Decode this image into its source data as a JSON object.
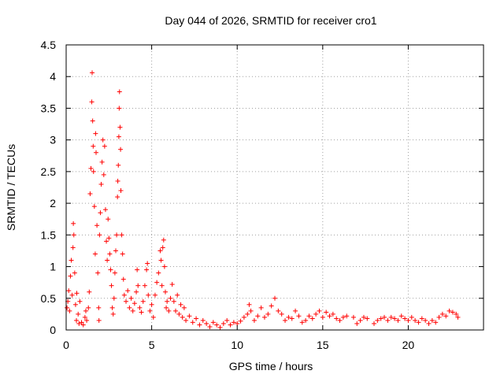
{
  "chart_data": {
    "type": "scatter",
    "title": "Day 044 of 2026, SRMTID for receiver cro1",
    "xlabel": "GPS time / hours",
    "ylabel": "SRMTID / TECUs",
    "xlim": [
      0,
      24.4
    ],
    "ylim": [
      0,
      4.5
    ],
    "x_ticks": [
      0,
      5,
      10,
      15,
      20
    ],
    "y_ticks": [
      0,
      0.5,
      1,
      1.5,
      2,
      2.5,
      3,
      3.5,
      4,
      4.5
    ],
    "x_tick_labels": [
      "0",
      "5",
      "10",
      "15",
      "20"
    ],
    "y_tick_labels": [
      "0",
      "0.5",
      "1",
      "1.5",
      "2",
      "2.5",
      "3",
      "3.5",
      "4",
      "4.5"
    ],
    "grid": true,
    "marker": "+",
    "color": "#ff0000",
    "series": [
      {
        "name": "cro1",
        "points": [
          [
            0.05,
            0.35
          ],
          [
            0.1,
            0.45
          ],
          [
            0.15,
            0.62
          ],
          [
            0.2,
            0.3
          ],
          [
            0.25,
            0.85
          ],
          [
            0.3,
            1.1
          ],
          [
            0.35,
            0.55
          ],
          [
            0.4,
            1.3
          ],
          [
            0.42,
            1.68
          ],
          [
            0.45,
            1.5
          ],
          [
            0.5,
            0.9
          ],
          [
            0.55,
            0.4
          ],
          [
            0.6,
            0.15
          ],
          [
            0.62,
            0.58
          ],
          [
            0.7,
            0.25
          ],
          [
            0.75,
            0.1
          ],
          [
            0.8,
            0.45
          ],
          [
            0.9,
            0.12
          ],
          [
            1.0,
            0.08
          ],
          [
            1.1,
            0.2
          ],
          [
            1.15,
            0.3
          ],
          [
            1.2,
            0.15
          ],
          [
            1.3,
            0.35
          ],
          [
            1.35,
            0.6
          ],
          [
            1.4,
            2.15
          ],
          [
            1.45,
            2.55
          ],
          [
            1.5,
            3.6
          ],
          [
            1.52,
            4.06
          ],
          [
            1.55,
            3.3
          ],
          [
            1.58,
            2.9
          ],
          [
            1.6,
            2.5
          ],
          [
            1.65,
            1.95
          ],
          [
            1.7,
            1.2
          ],
          [
            1.72,
            3.1
          ],
          [
            1.75,
            2.8
          ],
          [
            1.8,
            1.65
          ],
          [
            1.85,
            0.9
          ],
          [
            1.9,
            0.35
          ],
          [
            1.92,
            0.15
          ],
          [
            1.95,
            1.5
          ],
          [
            2.0,
            1.85
          ],
          [
            2.05,
            2.3
          ],
          [
            2.1,
            2.65
          ],
          [
            2.15,
            3.0
          ],
          [
            2.2,
            2.45
          ],
          [
            2.25,
            2.9
          ],
          [
            2.3,
            1.9
          ],
          [
            2.35,
            1.4
          ],
          [
            2.4,
            1.1
          ],
          [
            2.45,
            1.75
          ],
          [
            2.5,
            1.45
          ],
          [
            2.55,
            1.2
          ],
          [
            2.6,
            0.95
          ],
          [
            2.65,
            0.7
          ],
          [
            2.7,
            0.35
          ],
          [
            2.75,
            0.25
          ],
          [
            2.8,
            0.5
          ],
          [
            2.85,
            0.9
          ],
          [
            2.9,
            1.25
          ],
          [
            2.95,
            1.5
          ],
          [
            3.0,
            2.1
          ],
          [
            3.02,
            2.35
          ],
          [
            3.05,
            2.6
          ],
          [
            3.08,
            3.05
          ],
          [
            3.1,
            3.5
          ],
          [
            3.12,
            3.76
          ],
          [
            3.15,
            3.2
          ],
          [
            3.18,
            2.85
          ],
          [
            3.2,
            2.2
          ],
          [
            3.25,
            1.5
          ],
          [
            3.3,
            1.2
          ],
          [
            3.35,
            0.8
          ],
          [
            3.4,
            0.55
          ],
          [
            3.5,
            0.45
          ],
          [
            3.6,
            0.62
          ],
          [
            3.7,
            0.35
          ],
          [
            3.8,
            0.5
          ],
          [
            3.9,
            0.3
          ],
          [
            4.0,
            0.42
          ],
          [
            4.1,
            0.6
          ],
          [
            4.15,
            0.95
          ],
          [
            4.2,
            0.7
          ],
          [
            4.3,
            0.35
          ],
          [
            4.4,
            0.28
          ],
          [
            4.5,
            0.45
          ],
          [
            4.6,
            0.7
          ],
          [
            4.7,
            0.95
          ],
          [
            4.75,
            1.05
          ],
          [
            4.8,
            0.55
          ],
          [
            4.9,
            0.3
          ],
          [
            5.0,
            0.4
          ],
          [
            5.1,
            0.2
          ],
          [
            5.2,
            0.55
          ],
          [
            5.3,
            0.75
          ],
          [
            5.4,
            0.9
          ],
          [
            5.5,
            1.25
          ],
          [
            5.55,
            1.1
          ],
          [
            5.6,
            0.7
          ],
          [
            5.65,
            1.3
          ],
          [
            5.7,
            1.42
          ],
          [
            5.75,
            1.0
          ],
          [
            5.8,
            0.6
          ],
          [
            5.85,
            0.35
          ],
          [
            5.9,
            0.45
          ],
          [
            6.0,
            0.3
          ],
          [
            6.1,
            0.5
          ],
          [
            6.2,
            0.72
          ],
          [
            6.3,
            0.45
          ],
          [
            6.4,
            0.3
          ],
          [
            6.5,
            0.55
          ],
          [
            6.6,
            0.25
          ],
          [
            6.7,
            0.4
          ],
          [
            6.8,
            0.2
          ],
          [
            6.9,
            0.35
          ],
          [
            7.0,
            0.15
          ],
          [
            7.2,
            0.22
          ],
          [
            7.4,
            0.12
          ],
          [
            7.6,
            0.18
          ],
          [
            7.8,
            0.08
          ],
          [
            8.0,
            0.15
          ],
          [
            8.2,
            0.1
          ],
          [
            8.4,
            0.05
          ],
          [
            8.6,
            0.12
          ],
          [
            8.8,
            0.08
          ],
          [
            9.0,
            0.04
          ],
          [
            9.2,
            0.1
          ],
          [
            9.4,
            0.15
          ],
          [
            9.6,
            0.08
          ],
          [
            9.8,
            0.12
          ],
          [
            10.0,
            0.1
          ],
          [
            10.2,
            0.14
          ],
          [
            10.4,
            0.2
          ],
          [
            10.6,
            0.25
          ],
          [
            10.7,
            0.4
          ],
          [
            10.8,
            0.3
          ],
          [
            11.0,
            0.15
          ],
          [
            11.2,
            0.22
          ],
          [
            11.4,
            0.35
          ],
          [
            11.6,
            0.2
          ],
          [
            11.8,
            0.25
          ],
          [
            12.0,
            0.38
          ],
          [
            12.2,
            0.5
          ],
          [
            12.4,
            0.3
          ],
          [
            12.6,
            0.25
          ],
          [
            12.8,
            0.15
          ],
          [
            13.0,
            0.2
          ],
          [
            13.2,
            0.18
          ],
          [
            13.4,
            0.3
          ],
          [
            13.6,
            0.22
          ],
          [
            13.8,
            0.12
          ],
          [
            14.0,
            0.15
          ],
          [
            14.2,
            0.22
          ],
          [
            14.4,
            0.18
          ],
          [
            14.6,
            0.25
          ],
          [
            14.8,
            0.3
          ],
          [
            15.0,
            0.2
          ],
          [
            15.2,
            0.28
          ],
          [
            15.4,
            0.22
          ],
          [
            15.6,
            0.25
          ],
          [
            15.8,
            0.18
          ],
          [
            16.0,
            0.15
          ],
          [
            16.2,
            0.2
          ],
          [
            16.4,
            0.22
          ],
          [
            16.8,
            0.2
          ],
          [
            17.0,
            0.1
          ],
          [
            17.2,
            0.15
          ],
          [
            17.4,
            0.2
          ],
          [
            17.6,
            0.18
          ],
          [
            18.0,
            0.1
          ],
          [
            18.2,
            0.15
          ],
          [
            18.4,
            0.18
          ],
          [
            18.6,
            0.2
          ],
          [
            18.8,
            0.15
          ],
          [
            19.0,
            0.2
          ],
          [
            19.2,
            0.18
          ],
          [
            19.4,
            0.15
          ],
          [
            19.6,
            0.22
          ],
          [
            19.8,
            0.18
          ],
          [
            20.0,
            0.15
          ],
          [
            20.2,
            0.2
          ],
          [
            20.4,
            0.15
          ],
          [
            20.6,
            0.12
          ],
          [
            20.8,
            0.18
          ],
          [
            21.0,
            0.15
          ],
          [
            21.2,
            0.1
          ],
          [
            21.4,
            0.15
          ],
          [
            21.6,
            0.12
          ],
          [
            21.8,
            0.2
          ],
          [
            22.0,
            0.25
          ],
          [
            22.2,
            0.22
          ],
          [
            22.4,
            0.3
          ],
          [
            22.6,
            0.28
          ],
          [
            22.8,
            0.25
          ],
          [
            22.9,
            0.2
          ]
        ]
      }
    ]
  }
}
